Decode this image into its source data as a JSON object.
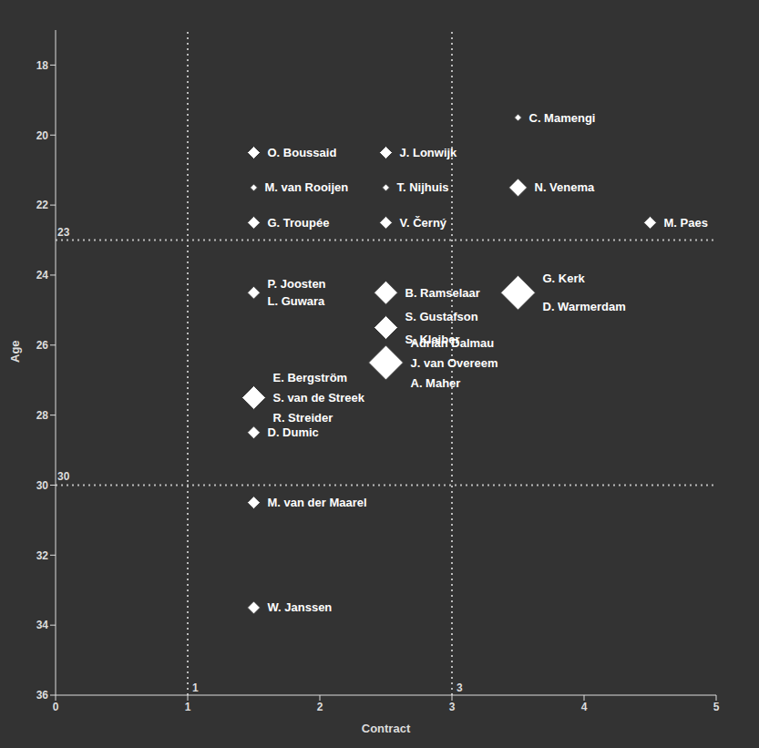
{
  "chart_data": {
    "type": "scatter",
    "x_label": "Contract",
    "y_label": "Age",
    "xlim": [
      0,
      5
    ],
    "xticks": [
      0,
      1,
      2,
      3,
      4,
      5
    ],
    "ylim": [
      36,
      17
    ],
    "yticks": [
      18,
      20,
      22,
      24,
      26,
      28,
      30,
      32,
      34,
      36
    ],
    "color": "#ffffff",
    "marker": "diamond",
    "grid": false,
    "reference_lines": {
      "x": [
        1,
        3
      ],
      "y": [
        23,
        30
      ]
    },
    "points": [
      {
        "x": 3.5,
        "y": 19.5,
        "size": 1,
        "labels": [
          "C. Mamengi"
        ]
      },
      {
        "x": 1.5,
        "y": 20.5,
        "size": 2,
        "labels": [
          "O. Boussaid"
        ]
      },
      {
        "x": 2.5,
        "y": 20.5,
        "size": 2,
        "labels": [
          "J. Lonwijk"
        ]
      },
      {
        "x": 1.5,
        "y": 21.5,
        "size": 1,
        "labels": [
          "M. van Rooijen"
        ]
      },
      {
        "x": 2.5,
        "y": 21.5,
        "size": 1,
        "labels": [
          "T. Nijhuis"
        ]
      },
      {
        "x": 3.5,
        "y": 21.5,
        "size": 3,
        "labels": [
          "N. Venema"
        ]
      },
      {
        "x": 1.5,
        "y": 22.5,
        "size": 2,
        "labels": [
          "G. Troupée"
        ]
      },
      {
        "x": 2.5,
        "y": 22.5,
        "size": 2,
        "labels": [
          "V. Černý"
        ]
      },
      {
        "x": 4.5,
        "y": 22.5,
        "size": 2,
        "labels": [
          "M. Paes"
        ]
      },
      {
        "x": 1.5,
        "y": 24.5,
        "size": 2,
        "labels": [
          "P. Joosten",
          "L. Guwara"
        ]
      },
      {
        "x": 2.5,
        "y": 24.5,
        "size": 4,
        "labels": [
          "B. Ramselaar"
        ]
      },
      {
        "x": 3.5,
        "y": 24.5,
        "size": 6,
        "labels": [
          "G. Kerk",
          "D. Warmerdam"
        ]
      },
      {
        "x": 2.5,
        "y": 25.5,
        "size": 4,
        "labels": [
          "S. Gustafson",
          "S. Klaiber"
        ]
      },
      {
        "x": 2.5,
        "y": 26.5,
        "size": 6,
        "labels": [
          "Adrián Dalmau",
          "J. van Overeem",
          "A. Maher"
        ]
      },
      {
        "x": 1.5,
        "y": 27.5,
        "size": 4,
        "labels": [
          "E. Bergström",
          "S. van de Streek",
          "R. Streider"
        ]
      },
      {
        "x": 1.5,
        "y": 28.5,
        "size": 2,
        "labels": [
          "D. Dumic"
        ]
      },
      {
        "x": 1.5,
        "y": 30.5,
        "size": 2,
        "labels": [
          "M. van der Maarel"
        ]
      },
      {
        "x": 1.5,
        "y": 33.5,
        "size": 2,
        "labels": [
          "W. Janssen"
        ]
      }
    ]
  }
}
